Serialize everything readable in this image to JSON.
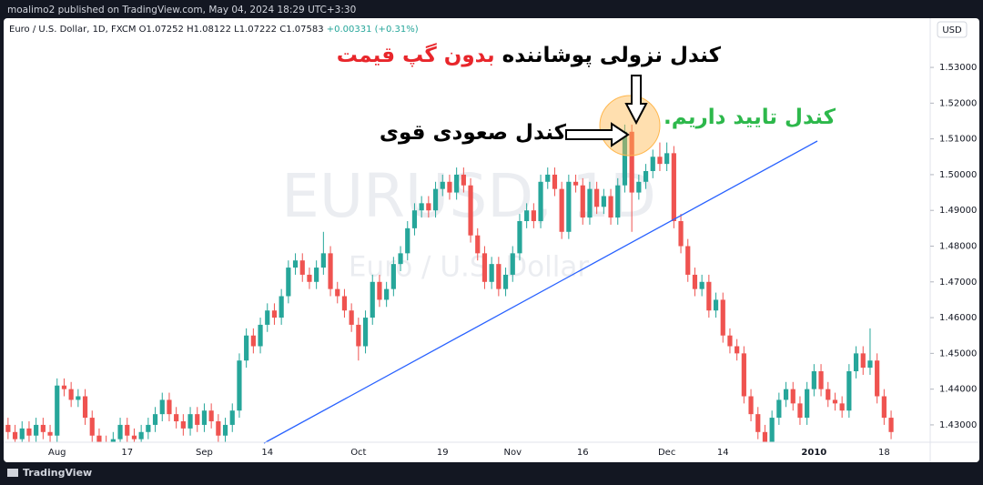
{
  "header": {
    "publisher": "moalimo2 published on TradingView.com, May 04, 2024 18:29 UTC+3:30"
  },
  "chart_data": {
    "type": "candlestick",
    "symbol": "Euro / U.S. Dollar, 1D, FXCM",
    "ohlc_readout": "O1.07252 H1.08122 L1.07222 C1.07583",
    "change_readout": "+0.00331 (+0.31%)",
    "watermark": "EURUSD, 1D",
    "watermark_subtitle": "Euro / U.S. Dollar",
    "currency": "USD",
    "annotations": {
      "engulfing": "کندل نزولی پوشاننده",
      "no_gap": "بدون گپ قیمت",
      "strong_bullish": "کندل صعودی قوی",
      "confirmation": "کندل تایید داریم."
    },
    "categories": [
      null,
      null,
      null,
      null,
      null,
      null,
      null,
      "Aug",
      null,
      null,
      null,
      null,
      null,
      null,
      null,
      null,
      null,
      "17",
      null,
      null,
      null,
      null,
      null,
      null,
      null,
      null,
      null,
      null,
      "Sep",
      null,
      null,
      null,
      null,
      null,
      null,
      null,
      null,
      "14",
      null,
      null,
      null,
      null,
      null,
      null,
      null,
      null,
      null,
      null,
      null,
      null,
      "Oct",
      null,
      null,
      null,
      null,
      null,
      null,
      null,
      null,
      null,
      null,
      null,
      "19",
      null,
      null,
      null,
      null,
      null,
      null,
      null,
      null,
      null,
      "Nov",
      null,
      null,
      null,
      null,
      null,
      null,
      null,
      null,
      null,
      "16",
      null,
      null,
      null,
      null,
      null,
      null,
      null,
      null,
      null,
      null,
      null,
      "Dec",
      null,
      null,
      null,
      null,
      null,
      null,
      null,
      "14",
      null,
      null,
      null,
      null,
      null,
      null,
      null,
      null,
      null,
      null,
      null,
      null,
      "2010",
      null,
      null,
      null,
      null,
      null,
      null,
      null,
      null,
      null,
      "18",
      null
    ],
    "open": [
      1.43,
      1.428,
      1.426,
      1.429,
      1.427,
      1.43,
      1.428,
      1.427,
      1.441,
      1.44,
      1.437,
      1.438,
      1.432,
      1.427,
      1.425,
      1.424,
      1.426,
      1.43,
      1.427,
      1.426,
      1.428,
      1.43,
      1.433,
      1.437,
      1.433,
      1.431,
      1.429,
      1.433,
      1.43,
      1.434,
      1.431,
      1.427,
      1.43,
      1.434,
      1.448,
      1.455,
      1.452,
      1.458,
      1.462,
      1.46,
      1.466,
      1.474,
      1.476,
      1.472,
      1.47,
      1.474,
      1.478,
      1.468,
      1.466,
      1.462,
      1.458,
      1.452,
      1.46,
      1.47,
      1.465,
      1.468,
      1.475,
      1.478,
      1.485,
      1.49,
      1.492,
      1.49,
      1.496,
      1.498,
      1.495,
      1.5,
      1.497,
      1.483,
      1.478,
      1.47,
      1.475,
      1.468,
      1.472,
      1.478,
      1.487,
      1.49,
      1.487,
      1.498,
      1.5,
      1.496,
      1.484,
      1.498,
      1.497,
      1.488,
      1.496,
      1.491,
      1.494,
      1.488,
      1.497,
      1.512,
      1.495,
      1.498,
      1.501,
      1.505,
      1.503,
      1.506,
      1.487,
      1.48,
      1.472,
      1.468,
      1.47,
      1.462,
      1.465,
      1.455,
      1.452,
      1.45,
      1.438,
      1.433,
      1.428,
      1.425,
      1.432,
      1.437,
      1.44,
      1.436,
      1.432,
      1.44,
      1.445,
      1.44,
      1.437,
      1.436,
      1.434,
      1.445,
      1.45,
      1.446,
      1.448,
      1.438,
      1.432
    ],
    "high": [
      1.432,
      1.43,
      1.431,
      1.431,
      1.432,
      1.432,
      1.43,
      1.443,
      1.443,
      1.442,
      1.44,
      1.44,
      1.434,
      1.429,
      1.427,
      1.428,
      1.432,
      1.432,
      1.429,
      1.43,
      1.432,
      1.435,
      1.439,
      1.439,
      1.435,
      1.433,
      1.435,
      1.435,
      1.436,
      1.436,
      1.433,
      1.432,
      1.436,
      1.45,
      1.457,
      1.457,
      1.46,
      1.464,
      1.464,
      1.468,
      1.476,
      1.478,
      1.478,
      1.474,
      1.476,
      1.484,
      1.48,
      1.47,
      1.468,
      1.464,
      1.46,
      1.462,
      1.472,
      1.472,
      1.47,
      1.477,
      1.48,
      1.487,
      1.492,
      1.494,
      1.494,
      1.498,
      1.5,
      1.5,
      1.502,
      1.502,
      1.499,
      1.485,
      1.48,
      1.477,
      1.477,
      1.474,
      1.48,
      1.489,
      1.492,
      1.492,
      1.5,
      1.502,
      1.502,
      1.498,
      1.5,
      1.5,
      1.499,
      1.498,
      1.498,
      1.496,
      1.496,
      1.499,
      1.514,
      1.514,
      1.5,
      1.503,
      1.507,
      1.509,
      1.509,
      1.508,
      1.489,
      1.482,
      1.474,
      1.472,
      1.472,
      1.467,
      1.467,
      1.457,
      1.454,
      1.452,
      1.44,
      1.435,
      1.43,
      1.434,
      1.439,
      1.442,
      1.442,
      1.438,
      1.442,
      1.447,
      1.447,
      1.442,
      1.439,
      1.438,
      1.447,
      1.452,
      1.452,
      1.457,
      1.45,
      1.44,
      1.434
    ],
    "low": [
      1.426,
      1.424,
      1.424,
      1.425,
      1.425,
      1.426,
      1.425,
      1.425,
      1.438,
      1.435,
      1.435,
      1.43,
      1.425,
      1.423,
      1.422,
      1.422,
      1.424,
      1.425,
      1.424,
      1.424,
      1.426,
      1.428,
      1.431,
      1.431,
      1.429,
      1.427,
      1.427,
      1.428,
      1.428,
      1.429,
      1.425,
      1.425,
      1.428,
      1.432,
      1.446,
      1.45,
      1.45,
      1.456,
      1.458,
      1.458,
      1.464,
      1.472,
      1.47,
      1.468,
      1.468,
      1.472,
      1.466,
      1.464,
      1.46,
      1.456,
      1.448,
      1.45,
      1.458,
      1.463,
      1.463,
      1.466,
      1.473,
      1.476,
      1.483,
      1.488,
      1.488,
      1.488,
      1.494,
      1.493,
      1.493,
      1.495,
      1.481,
      1.476,
      1.468,
      1.468,
      1.466,
      1.466,
      1.47,
      1.476,
      1.485,
      1.485,
      1.485,
      1.496,
      1.494,
      1.482,
      1.482,
      1.495,
      1.486,
      1.486,
      1.489,
      1.489,
      1.486,
      1.486,
      1.495,
      1.484,
      1.493,
      1.496,
      1.499,
      1.501,
      1.501,
      1.485,
      1.478,
      1.47,
      1.466,
      1.466,
      1.46,
      1.46,
      1.453,
      1.45,
      1.448,
      1.436,
      1.431,
      1.426,
      1.423,
      1.423,
      1.43,
      1.435,
      1.434,
      1.43,
      1.43,
      1.438,
      1.438,
      1.435,
      1.434,
      1.432,
      1.432,
      1.443,
      1.444,
      1.444,
      1.436,
      1.43,
      1.426
    ],
    "close": [
      1.428,
      1.426,
      1.429,
      1.427,
      1.43,
      1.428,
      1.427,
      1.441,
      1.44,
      1.437,
      1.438,
      1.432,
      1.427,
      1.425,
      1.424,
      1.426,
      1.43,
      1.427,
      1.426,
      1.428,
      1.43,
      1.433,
      1.437,
      1.433,
      1.431,
      1.429,
      1.433,
      1.43,
      1.434,
      1.431,
      1.427,
      1.43,
      1.434,
      1.448,
      1.455,
      1.452,
      1.458,
      1.462,
      1.46,
      1.466,
      1.474,
      1.476,
      1.472,
      1.47,
      1.474,
      1.478,
      1.468,
      1.466,
      1.462,
      1.458,
      1.452,
      1.46,
      1.47,
      1.465,
      1.468,
      1.475,
      1.478,
      1.485,
      1.49,
      1.492,
      1.49,
      1.496,
      1.498,
      1.495,
      1.5,
      1.497,
      1.483,
      1.478,
      1.47,
      1.475,
      1.468,
      1.472,
      1.478,
      1.487,
      1.49,
      1.487,
      1.498,
      1.5,
      1.496,
      1.484,
      1.498,
      1.497,
      1.488,
      1.496,
      1.491,
      1.494,
      1.488,
      1.497,
      1.512,
      1.495,
      1.498,
      1.501,
      1.505,
      1.503,
      1.506,
      1.487,
      1.48,
      1.472,
      1.468,
      1.47,
      1.462,
      1.465,
      1.455,
      1.452,
      1.45,
      1.438,
      1.433,
      1.428,
      1.425,
      1.432,
      1.437,
      1.44,
      1.436,
      1.432,
      1.44,
      1.445,
      1.44,
      1.437,
      1.436,
      1.434,
      1.445,
      1.45,
      1.446,
      1.448,
      1.438,
      1.432,
      1.428
    ],
    "up_color": "#26a69a",
    "down_color": "#ef5350",
    "ylim": [
      1.4254,
      1.5374
    ],
    "yticks": [
      {
        "value": 1.43,
        "label": "1.43000"
      },
      {
        "value": 1.44,
        "label": "1.44000"
      },
      {
        "value": 1.45,
        "label": "1.45000"
      },
      {
        "value": 1.46,
        "label": "1.46000"
      },
      {
        "value": 1.47,
        "label": "1.47000"
      },
      {
        "value": 1.48,
        "label": "1.48000"
      },
      {
        "value": 1.49,
        "label": "1.49000"
      },
      {
        "value": 1.5,
        "label": "1.50000"
      },
      {
        "value": 1.51,
        "label": "1.51000"
      },
      {
        "value": 1.52,
        "label": "1.52000"
      },
      {
        "value": 1.53,
        "label": "1.53000"
      }
    ],
    "grid": false
  },
  "footer": {
    "brand": "TradingView"
  }
}
